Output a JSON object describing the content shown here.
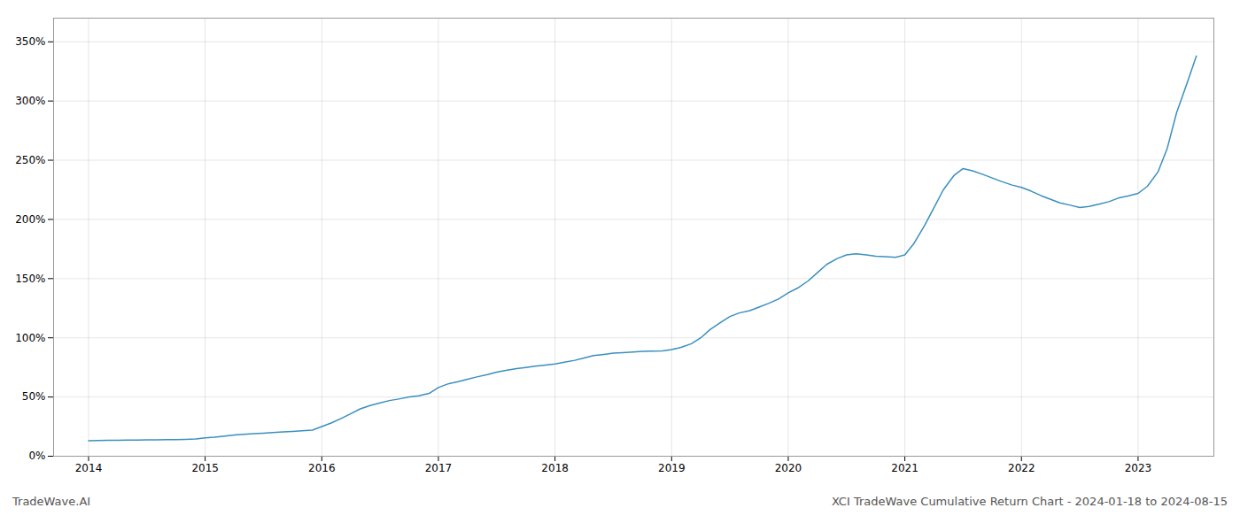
{
  "chart_data": {
    "type": "line",
    "title": "XCI TradeWave Cumulative Return Chart - 2024-01-18 to 2024-08-15",
    "annotations": [
      "TradeWave.AI"
    ],
    "color": "#3a8fbf",
    "x": [
      2014.0,
      2014.08,
      2014.17,
      2014.25,
      2014.33,
      2014.42,
      2014.5,
      2014.58,
      2014.67,
      2014.75,
      2014.83,
      2014.92,
      2015.0,
      2015.08,
      2015.17,
      2015.25,
      2015.33,
      2015.42,
      2015.5,
      2015.58,
      2015.67,
      2015.75,
      2015.83,
      2015.92,
      2016.0,
      2016.08,
      2016.17,
      2016.25,
      2016.33,
      2016.42,
      2016.5,
      2016.58,
      2016.67,
      2016.75,
      2016.83,
      2016.92,
      2017.0,
      2017.08,
      2017.17,
      2017.25,
      2017.33,
      2017.42,
      2017.5,
      2017.58,
      2017.67,
      2017.75,
      2017.83,
      2017.92,
      2018.0,
      2018.08,
      2018.17,
      2018.25,
      2018.33,
      2018.42,
      2018.5,
      2018.58,
      2018.67,
      2018.75,
      2018.83,
      2018.92,
      2019.0,
      2019.08,
      2019.17,
      2019.25,
      2019.33,
      2019.42,
      2019.5,
      2019.58,
      2019.67,
      2019.75,
      2019.83,
      2019.92,
      2020.0,
      2020.08,
      2020.17,
      2020.25,
      2020.33,
      2020.42,
      2020.5,
      2020.58,
      2020.67,
      2020.75,
      2020.83,
      2020.92,
      2021.0,
      2021.08,
      2021.17,
      2021.25,
      2021.33,
      2021.42,
      2021.5,
      2021.58,
      2021.67,
      2021.75,
      2021.83,
      2021.92,
      2022.0,
      2022.08,
      2022.17,
      2022.25,
      2022.33,
      2022.42,
      2022.5,
      2022.58,
      2022.67,
      2022.75,
      2022.83,
      2022.92,
      2023.0,
      2023.08,
      2023.17,
      2023.25,
      2023.33,
      2023.42,
      2023.5
    ],
    "values": [
      13,
      13.2,
      13.4,
      13.5,
      13.6,
      13.7,
      13.8,
      13.9,
      14.0,
      14.1,
      14.2,
      14.5,
      15.5,
      16.0,
      17.0,
      18.0,
      18.5,
      19.0,
      19.5,
      20.0,
      20.5,
      21.0,
      21.5,
      22.0,
      25.0,
      28.0,
      32.0,
      36.0,
      40.0,
      43.0,
      45.0,
      47.0,
      48.5,
      50.0,
      51.0,
      53.0,
      58.0,
      61.0,
      63.0,
      65.0,
      67.0,
      69.0,
      71.0,
      72.5,
      74.0,
      75.0,
      76.0,
      77.0,
      78.0,
      79.5,
      81.0,
      83.0,
      85.0,
      86.0,
      87.0,
      87.5,
      88.0,
      88.5,
      88.8,
      89.0,
      90.0,
      92.0,
      95.0,
      100.0,
      107.0,
      113.0,
      118.0,
      121.0,
      123.0,
      126.0,
      129.0,
      133.0,
      138.0,
      142.0,
      148.0,
      155.0,
      162.0,
      167.0,
      170.0,
      171.0,
      170.0,
      169.0,
      168.5,
      168.0,
      170.0,
      180.0,
      195.0,
      210.0,
      225.0,
      237.0,
      243.0,
      241.0,
      238.0,
      235.0,
      232.0,
      229.0,
      227.0,
      224.0,
      220.0,
      217.0,
      214.0,
      212.0,
      210.0,
      211.0,
      213.0,
      215.0,
      218.0,
      220.0,
      222.0,
      228.0,
      240.0,
      260.0,
      290.0,
      315.0,
      338.0
    ],
    "xlim": [
      2013.7,
      2023.65
    ],
    "ylim": [
      0,
      370
    ],
    "xticks": [
      2014,
      2015,
      2016,
      2017,
      2018,
      2019,
      2020,
      2021,
      2022,
      2023
    ],
    "yticks": [
      {
        "value": 0,
        "label": "0%"
      },
      {
        "value": 50,
        "label": "50%"
      },
      {
        "value": 100,
        "label": "100%"
      },
      {
        "value": 150,
        "label": "150%"
      },
      {
        "value": 200,
        "label": "200%"
      },
      {
        "value": 250,
        "label": "250%"
      },
      {
        "value": 300,
        "label": "300%"
      },
      {
        "value": 350,
        "label": "350%"
      }
    ],
    "grid": true
  }
}
